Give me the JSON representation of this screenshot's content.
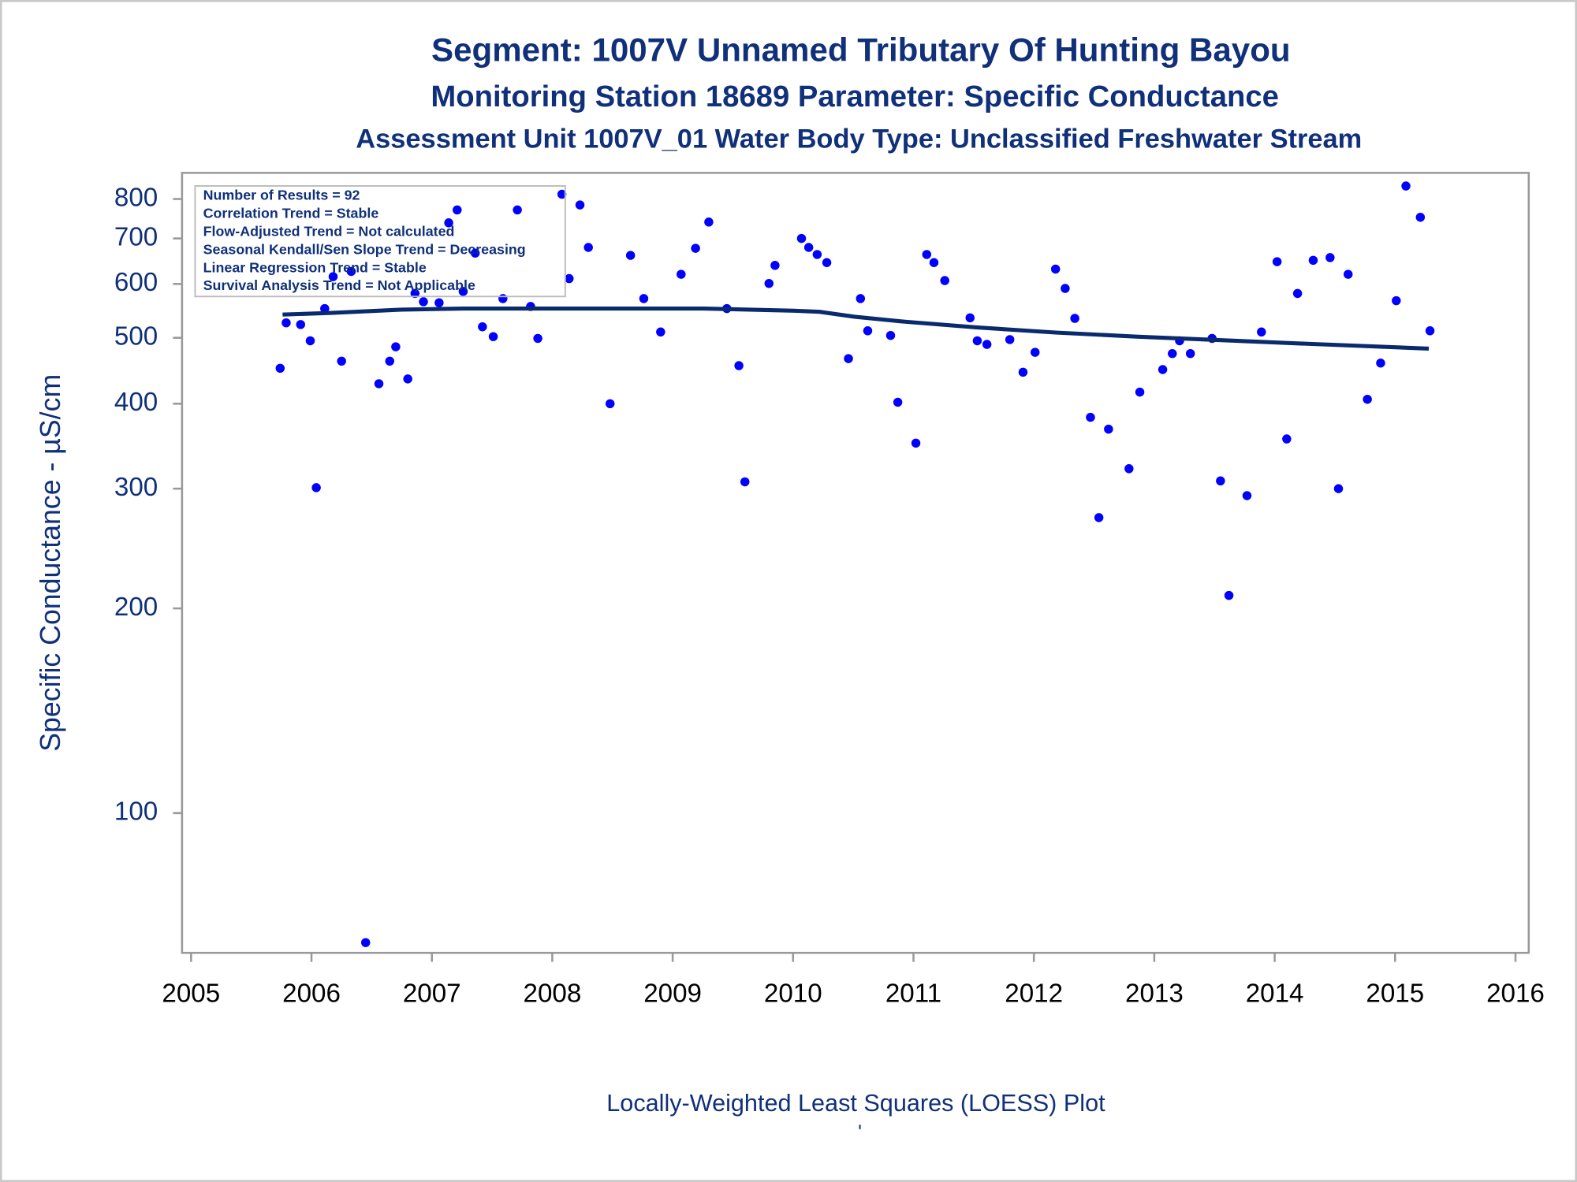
{
  "chart_data": {
    "type": "scatter",
    "title": "Segment: 1007V  Unnamed Tributary Of Hunting Bayou",
    "subtitle": "Monitoring Station 18689 Parameter: Specific Conductance",
    "subtitle2": "Assessment Unit 1007V_01   Water Body Type: Unclassified Freshwater Stream",
    "y_label": "Specific Conductance -  µS/cm",
    "footnote": "Locally-Weighted Least Squares (LOESS) Plot",
    "footnote2": "'",
    "stats": [
      "Number of Results = 92",
      "Correlation Trend = Stable",
      "Flow-Adjusted Trend = Not calculated",
      "Seasonal Kendall/Sen Slope Trend = Decreasing",
      "Linear Regression Trend = Stable",
      "Survival Analysis Trend = Not Applicable"
    ],
    "log_y": true,
    "xlim": [
      2004.925,
      2016.11
    ],
    "xticks": [
      2005,
      2006,
      2007,
      2008,
      2009,
      2010,
      2011,
      2012,
      2013,
      2014,
      2015,
      2016
    ],
    "ylim": [
      62.3,
      874
    ],
    "yticks": [
      100,
      200,
      300,
      400,
      500,
      600,
      700,
      800
    ],
    "series": [
      {
        "mark": "point",
        "color": "#0000ff",
        "x": [
          2005.74,
          2005.79,
          2005.91,
          2005.99,
          2006.04,
          2006.11,
          2006.18,
          2006.25,
          2006.33,
          2006.45,
          2006.56,
          2006.65,
          2006.7,
          2006.8,
          2006.86,
          2006.93,
          2007.06,
          2007.14,
          2007.21,
          2007.26,
          2007.36,
          2007.42,
          2007.51,
          2007.59,
          2007.71,
          2007.82,
          2007.88,
          2008.08,
          2008.14,
          2008.23,
          2008.3,
          2008.48,
          2008.65,
          2008.76,
          2008.9,
          2009.07,
          2009.19,
          2009.3,
          2009.45,
          2009.55,
          2009.6,
          2009.8,
          2009.85,
          2010.07,
          2010.13,
          2010.2,
          2010.28,
          2010.46,
          2010.56,
          2010.62,
          2010.81,
          2010.87,
          2011.02,
          2011.11,
          2011.17,
          2011.26,
          2011.47,
          2011.53,
          2011.61,
          2011.8,
          2011.91,
          2012.01,
          2012.18,
          2012.26,
          2012.34,
          2012.47,
          2012.54,
          2012.62,
          2012.79,
          2012.88,
          2013.07,
          2013.15,
          2013.21,
          2013.3,
          2013.48,
          2013.55,
          2013.62,
          2013.77,
          2013.89,
          2014.02,
          2014.1,
          2014.19,
          2014.32,
          2014.46,
          2014.53,
          2014.61,
          2014.77,
          2014.88,
          2015.01,
          2015.09,
          2015.21,
          2015.29
        ],
        "values": [
          451,
          526,
          523,
          495,
          301,
          552,
          615,
          462,
          626,
          64.5,
          428,
          462,
          485,
          435,
          581,
          565,
          563,
          738,
          771,
          585,
          666,
          519,
          502,
          571,
          771,
          556,
          499,
          813,
          611,
          784,
          679,
          400,
          661,
          571,
          510,
          620,
          677,
          740,
          552,
          455,
          307,
          601,
          639,
          700,
          679,
          663,
          645,
          466,
          571,
          512,
          504,
          402,
          350,
          663,
          645,
          607,
          535,
          495,
          489,
          497,
          445,
          476,
          631,
          591,
          534,
          382,
          272,
          367,
          321,
          416,
          449,
          474,
          495,
          474,
          499,
          308,
          209,
          293,
          510,
          647,
          355,
          581,
          650,
          656,
          300,
          620,
          406,
          459,
          567,
          836,
          752,
          512
        ]
      },
      {
        "mark": "line",
        "color": "#0a2a6e",
        "x": [
          2005.76,
          2006.17,
          2006.75,
          2007.26,
          2008.0,
          2009.26,
          2010.01,
          2010.22,
          2010.51,
          2010.93,
          2011.52,
          2012.18,
          2012.85,
          2013.44,
          2014.27,
          2015.28
        ],
        "values": [
          541,
          544,
          550,
          552,
          552,
          552,
          548,
          546,
          537,
          528,
          518,
          509,
          502,
          497,
          490,
          482
        ]
      }
    ]
  }
}
